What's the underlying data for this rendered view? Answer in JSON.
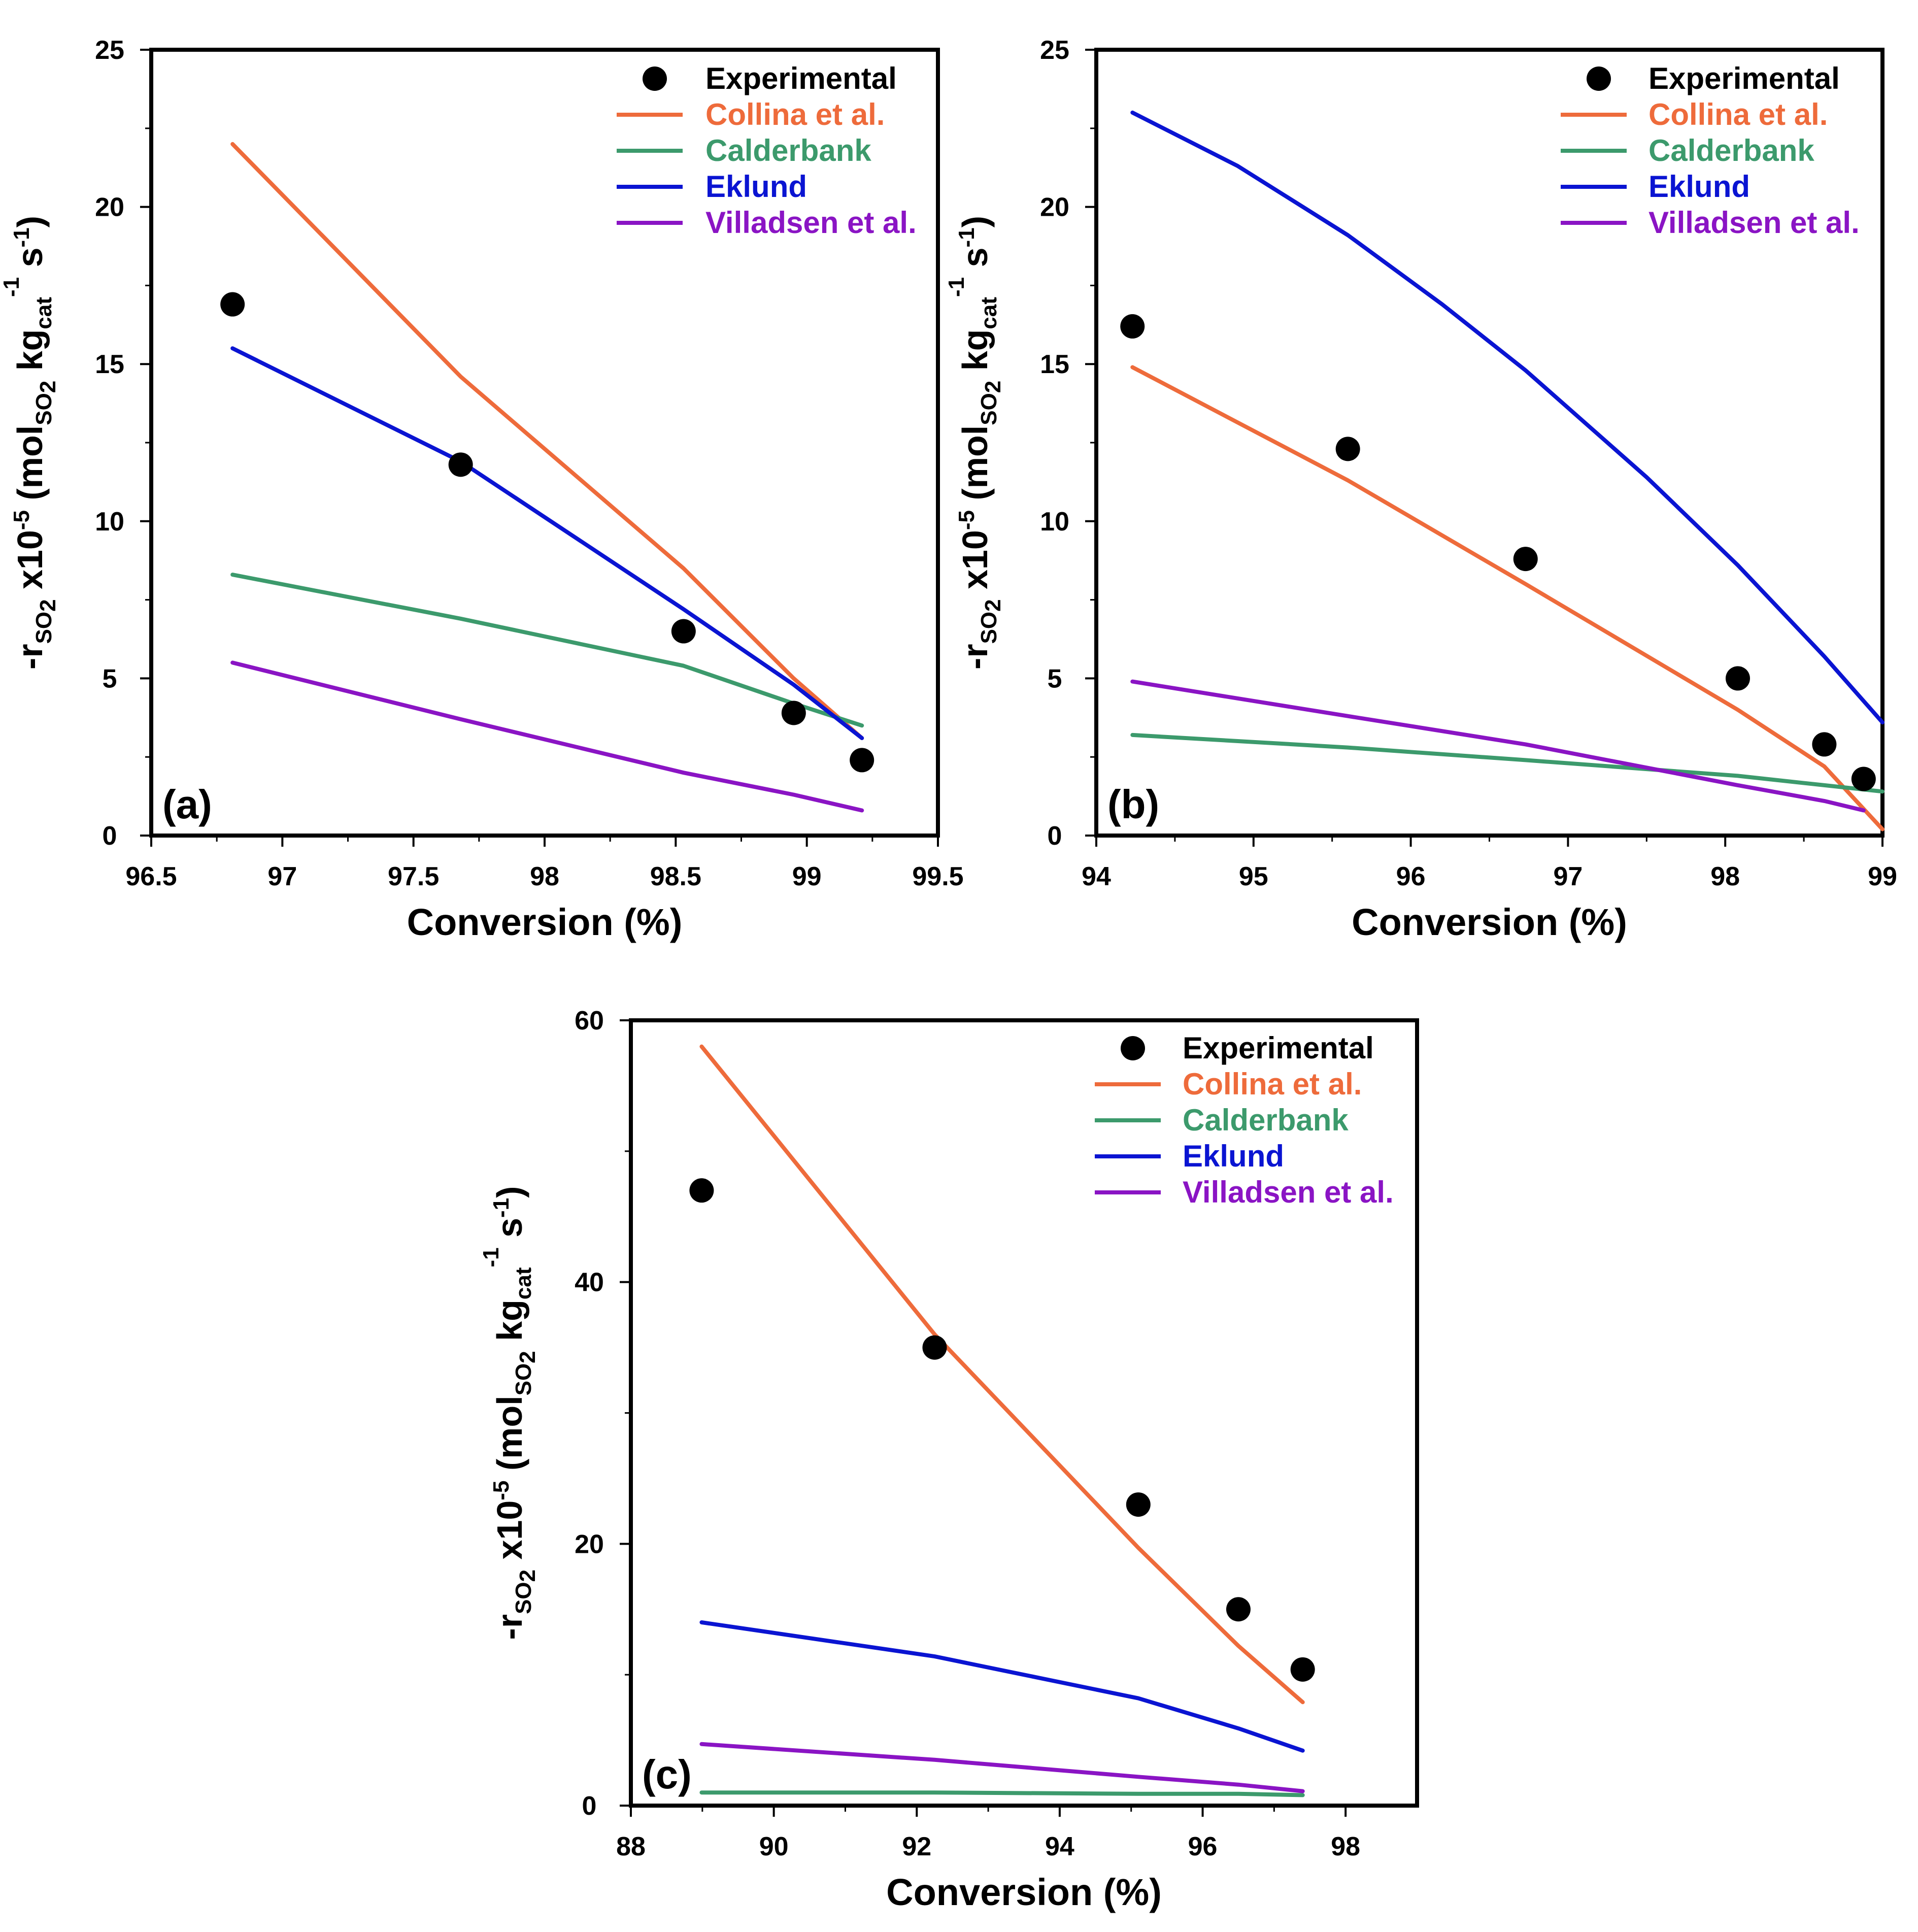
{
  "colors": {
    "experimental": "#000000",
    "collina": "#ee6b3b",
    "calderbank": "#3c9a6c",
    "eklund": "#0a14d2",
    "villadsen": "#8a14c4"
  },
  "y_label": {
    "prefix": "-r",
    "sub1": "SO",
    "sub1b": "2",
    "mid": " x10",
    "sup1": "-5",
    "paren": " (mol",
    "sub2": "SO",
    "sub2b": "2",
    "kg": " kg",
    "sub3": "cat",
    "sup2": "-1",
    "s": " s",
    "sup3": "-1",
    "close": ")"
  },
  "chart_data": [
    {
      "type": "line",
      "panel_label": "(a)",
      "xlabel": "Conversion (%)",
      "xlim": [
        96.5,
        99.5
      ],
      "ylim": [
        0,
        25
      ],
      "xticks": [
        "96.5",
        "97",
        "97.5",
        "98",
        "98.5",
        "99",
        "99.5"
      ],
      "yticks": [
        "0",
        "5",
        "10",
        "15",
        "20",
        "25"
      ],
      "legend": [
        "Experimental",
        "Collina et al.",
        "Calderbank",
        "Eklund",
        "Villadsen et al."
      ],
      "series": [
        {
          "name": "Experimental",
          "kind": "scatter",
          "color_key": "experimental",
          "x": [
            96.81,
            97.68,
            98.53,
            98.95,
            99.21
          ],
          "y": [
            16.9,
            11.8,
            6.5,
            3.9,
            2.4
          ]
        },
        {
          "name": "Collina et al.",
          "kind": "line",
          "color_key": "collina",
          "x": [
            96.81,
            97.68,
            98.53,
            98.95,
            99.21
          ],
          "y": [
            22.0,
            14.6,
            8.5,
            5.0,
            3.1
          ]
        },
        {
          "name": "Calderbank",
          "kind": "line",
          "color_key": "calderbank",
          "x": [
            96.81,
            97.68,
            98.53,
            98.95,
            99.21
          ],
          "y": [
            8.3,
            6.9,
            5.4,
            4.2,
            3.5
          ]
        },
        {
          "name": "Eklund",
          "kind": "line",
          "color_key": "eklund",
          "x": [
            96.81,
            97.68,
            98.53,
            98.95,
            99.21
          ],
          "y": [
            15.5,
            11.9,
            7.2,
            4.8,
            3.1
          ]
        },
        {
          "name": "Villadsen et al.",
          "kind": "line",
          "color_key": "villadsen",
          "x": [
            96.81,
            97.68,
            98.53,
            98.95,
            99.21
          ],
          "y": [
            5.5,
            3.7,
            2.0,
            1.3,
            0.8
          ]
        }
      ]
    },
    {
      "type": "line",
      "panel_label": "(b)",
      "xlabel": "Conversion (%)",
      "xlim": [
        94,
        99
      ],
      "ylim": [
        0,
        25
      ],
      "xticks": [
        "94",
        "95",
        "96",
        "97",
        "98",
        "99"
      ],
      "yticks": [
        "0",
        "5",
        "10",
        "15",
        "20",
        "25"
      ],
      "legend": [
        "Experimental",
        "Collina et al.",
        "Calderbank",
        "Eklund",
        "Villadsen et al."
      ],
      "series": [
        {
          "name": "Experimental",
          "kind": "scatter",
          "color_key": "experimental",
          "x": [
            94.23,
            95.6,
            96.73,
            98.08,
            98.63,
            98.88
          ],
          "y": [
            16.2,
            12.3,
            8.8,
            5.0,
            2.9,
            1.8
          ]
        },
        {
          "name": "Collina et al.",
          "kind": "line",
          "color_key": "collina",
          "x": [
            94.23,
            95.6,
            96.73,
            98.08,
            98.63,
            99.0
          ],
          "y": [
            14.9,
            11.3,
            8.0,
            4.0,
            2.2,
            0.2
          ]
        },
        {
          "name": "Calderbank",
          "kind": "line",
          "color_key": "calderbank",
          "x": [
            94.23,
            95.6,
            96.73,
            98.08,
            98.63,
            99.0
          ],
          "y": [
            3.2,
            2.8,
            2.4,
            1.9,
            1.6,
            1.4
          ]
        },
        {
          "name": "Eklund",
          "kind": "line",
          "color_key": "eklund",
          "x": [
            94.23,
            94.9,
            95.6,
            96.2,
            96.73,
            97.5,
            98.08,
            98.63,
            99.0
          ],
          "y": [
            23.0,
            21.3,
            19.1,
            16.9,
            14.8,
            11.4,
            8.6,
            5.7,
            3.6
          ]
        },
        {
          "name": "Villadsen et al.",
          "kind": "line",
          "color_key": "villadsen",
          "x": [
            94.23,
            95.6,
            96.73,
            98.08,
            98.63,
            98.88
          ],
          "y": [
            4.9,
            3.8,
            2.9,
            1.6,
            1.1,
            0.8
          ]
        }
      ]
    },
    {
      "type": "line",
      "panel_label": "(c)",
      "xlabel": "Conversion (%)",
      "xlim": [
        88,
        99
      ],
      "ylim": [
        0,
        60
      ],
      "xticks": [
        "88",
        "90",
        "92",
        "94",
        "96",
        "98"
      ],
      "yticks": [
        "0",
        "20",
        "40",
        "60"
      ],
      "legend": [
        "Experimental",
        "Collina et al.",
        "Calderbank",
        "Eklund",
        "Villadsen et al."
      ],
      "series": [
        {
          "name": "Experimental",
          "kind": "scatter",
          "color_key": "experimental",
          "x": [
            88.99,
            92.25,
            95.1,
            96.5,
            97.4
          ],
          "y": [
            47.0,
            35.0,
            23.0,
            15.0,
            10.4
          ]
        },
        {
          "name": "Collina et al.",
          "kind": "line",
          "color_key": "collina",
          "x": [
            88.99,
            92.25,
            95.1,
            96.5,
            97.4
          ],
          "y": [
            58.0,
            36.0,
            19.7,
            12.2,
            7.9
          ]
        },
        {
          "name": "Calderbank",
          "kind": "line",
          "color_key": "calderbank",
          "x": [
            88.99,
            92.25,
            95.1,
            96.5,
            97.4
          ],
          "y": [
            1.0,
            1.0,
            0.9,
            0.9,
            0.8
          ]
        },
        {
          "name": "Eklund",
          "kind": "line",
          "color_key": "eklund",
          "x": [
            88.99,
            92.25,
            95.1,
            96.5,
            97.4
          ],
          "y": [
            14.0,
            11.4,
            8.2,
            5.9,
            4.2
          ]
        },
        {
          "name": "Villadsen et al.",
          "kind": "line",
          "color_key": "villadsen",
          "x": [
            88.99,
            92.25,
            95.1,
            96.5,
            97.4
          ],
          "y": [
            4.7,
            3.5,
            2.2,
            1.6,
            1.1
          ]
        }
      ]
    }
  ]
}
